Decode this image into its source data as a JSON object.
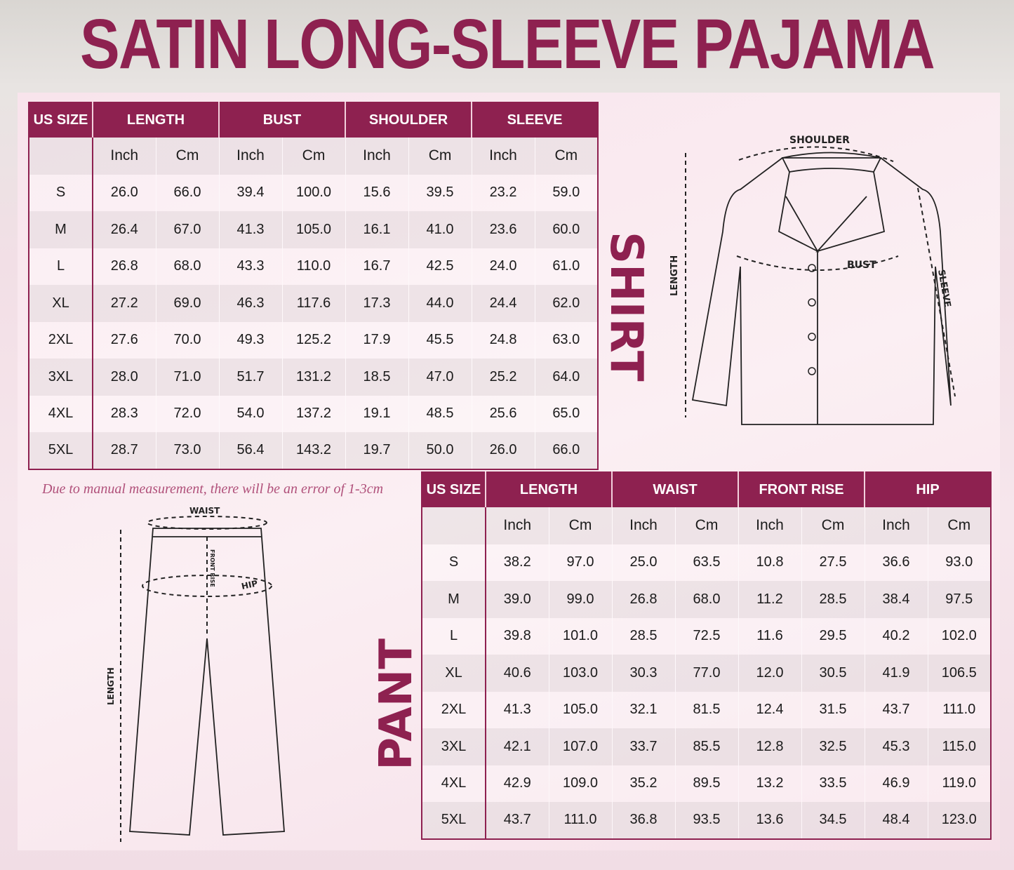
{
  "title": "SATIN LONG-SLEEVE PAJAMA",
  "note": "Due to manual measurement, there will be an error of 1-3cm",
  "colors": {
    "accent": "#8e2150"
  },
  "shirt": {
    "label": "SHIRT",
    "diagram_labels": {
      "shoulder": "SHOULDER",
      "bust": "BUST",
      "length": "LENGTH",
      "sleeve": "SLEEVE"
    },
    "columns": [
      "US SIZE",
      "LENGTH",
      "BUST",
      "SHOULDER",
      "SLEEVE"
    ],
    "units": [
      "Inch",
      "Cm",
      "Inch",
      "Cm",
      "Inch",
      "Cm",
      "Inch",
      "Cm"
    ],
    "rows": [
      [
        "S",
        "26.0",
        "66.0",
        "39.4",
        "100.0",
        "15.6",
        "39.5",
        "23.2",
        "59.0"
      ],
      [
        "M",
        "26.4",
        "67.0",
        "41.3",
        "105.0",
        "16.1",
        "41.0",
        "23.6",
        "60.0"
      ],
      [
        "L",
        "26.8",
        "68.0",
        "43.3",
        "110.0",
        "16.7",
        "42.5",
        "24.0",
        "61.0"
      ],
      [
        "XL",
        "27.2",
        "69.0",
        "46.3",
        "117.6",
        "17.3",
        "44.0",
        "24.4",
        "62.0"
      ],
      [
        "2XL",
        "27.6",
        "70.0",
        "49.3",
        "125.2",
        "17.9",
        "45.5",
        "24.8",
        "63.0"
      ],
      [
        "3XL",
        "28.0",
        "71.0",
        "51.7",
        "131.2",
        "18.5",
        "47.0",
        "25.2",
        "64.0"
      ],
      [
        "4XL",
        "28.3",
        "72.0",
        "54.0",
        "137.2",
        "19.1",
        "48.5",
        "25.6",
        "65.0"
      ],
      [
        "5XL",
        "28.7",
        "73.0",
        "56.4",
        "143.2",
        "19.7",
        "50.0",
        "26.0",
        "66.0"
      ]
    ]
  },
  "pant": {
    "label": "PANT",
    "diagram_labels": {
      "waist": "WAIST",
      "front_rise": "FRONT RISE",
      "hip": "HIP",
      "length": "LENGTH"
    },
    "columns": [
      "US SIZE",
      "LENGTH",
      "WAIST",
      "FRONT RISE",
      "HIP"
    ],
    "units": [
      "Inch",
      "Cm",
      "Inch",
      "Cm",
      "Inch",
      "Cm",
      "Inch",
      "Cm"
    ],
    "rows": [
      [
        "S",
        "38.2",
        "97.0",
        "25.0",
        "63.5",
        "10.8",
        "27.5",
        "36.6",
        "93.0"
      ],
      [
        "M",
        "39.0",
        "99.0",
        "26.8",
        "68.0",
        "11.2",
        "28.5",
        "38.4",
        "97.5"
      ],
      [
        "L",
        "39.8",
        "101.0",
        "28.5",
        "72.5",
        "11.6",
        "29.5",
        "40.2",
        "102.0"
      ],
      [
        "XL",
        "40.6",
        "103.0",
        "30.3",
        "77.0",
        "12.0",
        "30.5",
        "41.9",
        "106.5"
      ],
      [
        "2XL",
        "41.3",
        "105.0",
        "32.1",
        "81.5",
        "12.4",
        "31.5",
        "43.7",
        "111.0"
      ],
      [
        "3XL",
        "42.1",
        "107.0",
        "33.7",
        "85.5",
        "12.8",
        "32.5",
        "45.3",
        "115.0"
      ],
      [
        "4XL",
        "42.9",
        "109.0",
        "35.2",
        "89.5",
        "13.2",
        "33.5",
        "46.9",
        "119.0"
      ],
      [
        "5XL",
        "43.7",
        "111.0",
        "36.8",
        "93.5",
        "13.6",
        "34.5",
        "48.4",
        "123.0"
      ]
    ]
  }
}
